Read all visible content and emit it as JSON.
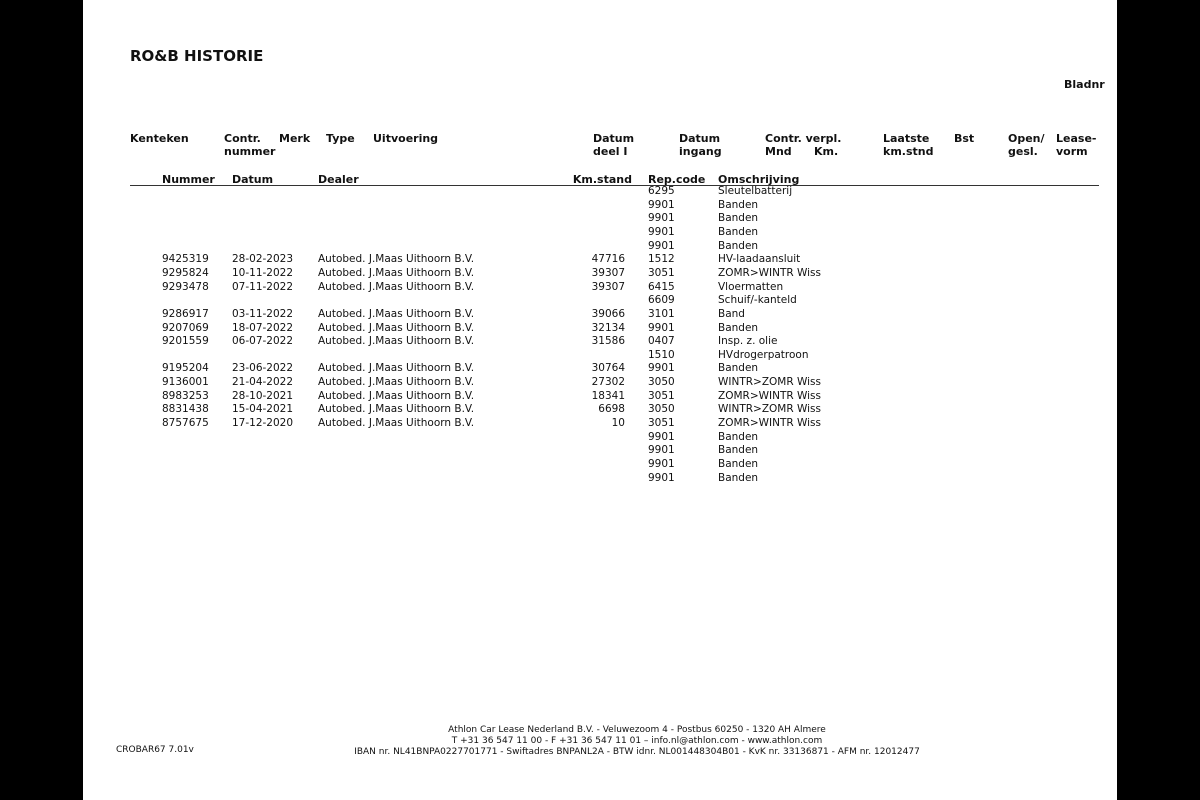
{
  "title": "RO&B HISTORIE",
  "page_label": "Bladnr",
  "header_top": {
    "kenteken": "Kenteken",
    "contr_nummer": [
      "Contr.",
      "nummer"
    ],
    "merk": "Merk",
    "type": "Type",
    "uitvoering": "Uitvoering",
    "datum_deel": [
      "Datum",
      "deel I"
    ],
    "datum_ingang": [
      "Datum",
      "ingang"
    ],
    "contr_verpl": [
      "Contr. verpl.",
      "Mnd",
      "Km."
    ],
    "laatste": [
      "Laatste",
      "km.stnd"
    ],
    "bst": "Bst",
    "open": [
      "Open/",
      "gesl."
    ],
    "lease": [
      "Lease-",
      "vorm"
    ]
  },
  "columns": {
    "nummer": "Nummer",
    "datum": "Datum",
    "dealer": "Dealer",
    "km": "Km.stand",
    "code": "Rep.code",
    "omschrijving": "Omschrijving"
  },
  "rows": [
    [
      "",
      "",
      "",
      "",
      "6295",
      "Sleutelbatterij"
    ],
    [
      "",
      "",
      "",
      "",
      "9901",
      "Banden"
    ],
    [
      "",
      "",
      "",
      "",
      "9901",
      "Banden"
    ],
    [
      "",
      "",
      "",
      "",
      "9901",
      "Banden"
    ],
    [
      "",
      "",
      "",
      "",
      "9901",
      "Banden"
    ],
    [
      "9425319",
      "28-02-2023",
      "Autobed. J.Maas Uithoorn B.V.",
      "47716",
      "1512",
      "HV-laadaansluit"
    ],
    [
      "9295824",
      "10-11-2022",
      "Autobed. J.Maas Uithoorn B.V.",
      "39307",
      "3051",
      "ZOMR>WINTR Wiss"
    ],
    [
      "9293478",
      "07-11-2022",
      "Autobed. J.Maas Uithoorn B.V.",
      "39307",
      "6415",
      "Vloermatten"
    ],
    [
      "",
      "",
      "",
      "",
      "6609",
      "Schuif/-kanteld"
    ],
    [
      "9286917",
      "03-11-2022",
      "Autobed. J.Maas Uithoorn B.V.",
      "39066",
      "3101",
      "Band"
    ],
    [
      "9207069",
      "18-07-2022",
      "Autobed. J.Maas Uithoorn B.V.",
      "32134",
      "9901",
      "Banden"
    ],
    [
      "9201559",
      "06-07-2022",
      "Autobed. J.Maas Uithoorn B.V.",
      "31586",
      "0407",
      "Insp. z. olie"
    ],
    [
      "",
      "",
      "",
      "",
      "1510",
      "HVdrogerpatroon"
    ],
    [
      "9195204",
      "23-06-2022",
      "Autobed. J.Maas Uithoorn B.V.",
      "30764",
      "9901",
      "Banden"
    ],
    [
      "9136001",
      "21-04-2022",
      "Autobed. J.Maas Uithoorn B.V.",
      "27302",
      "3050",
      "WINTR>ZOMR Wiss"
    ],
    [
      "8983253",
      "28-10-2021",
      "Autobed. J.Maas Uithoorn B.V.",
      "18341",
      "3051",
      "ZOMR>WINTR Wiss"
    ],
    [
      "8831438",
      "15-04-2021",
      "Autobed. J.Maas Uithoorn B.V.",
      "6698",
      "3050",
      "WINTR>ZOMR Wiss"
    ],
    [
      "8757675",
      "17-12-2020",
      "Autobed. J.Maas Uithoorn B.V.",
      "10",
      "3051",
      "ZOMR>WINTR Wiss"
    ],
    [
      "",
      "",
      "",
      "",
      "9901",
      "Banden"
    ],
    [
      "",
      "",
      "",
      "",
      "9901",
      "Banden"
    ],
    [
      "",
      "",
      "",
      "",
      "9901",
      "Banden"
    ],
    [
      "",
      "",
      "",
      "",
      "9901",
      "Banden"
    ]
  ],
  "footer": {
    "form_code": "CROBAR67 7.01v",
    "line1": "Athlon Car Lease Nederland B.V. - Veluwezoom 4 - Postbus 60250 - 1320 AH  Almere",
    "line2": "T +31 36 547 11 00 - F +31 36 547 11 01 – info.nl@athlon.com - www.athlon.com",
    "line3": "IBAN nr. NL41BNPA0227701771 - Swiftadres BNPANL2A - BTW idnr. NL001448304B01 - KvK nr. 33136871 - AFM nr. 12012477"
  }
}
